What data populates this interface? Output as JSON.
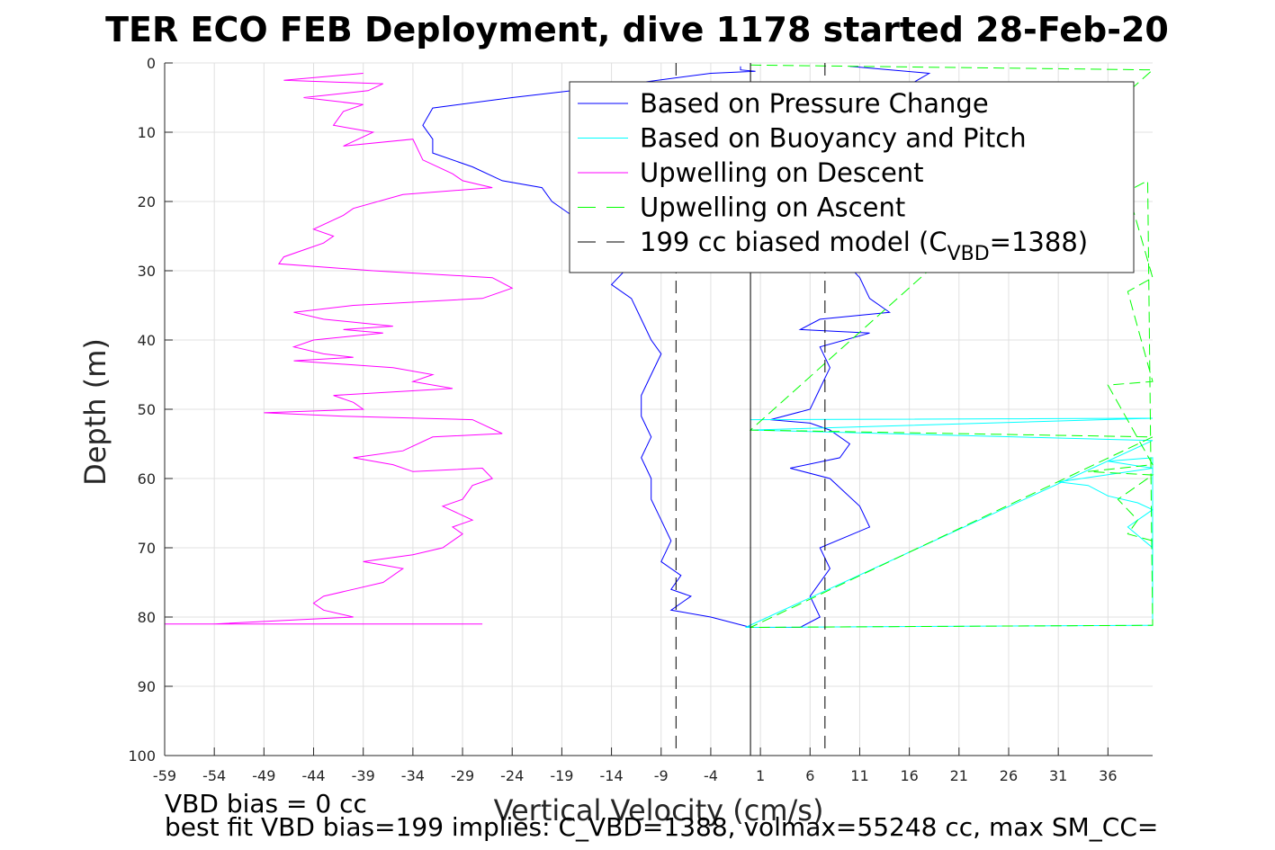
{
  "chart_data": {
    "type": "line",
    "title": "TER ECO FEB Deployment, dive 1178 started 28-Feb-20",
    "xlabel": "Vertical Velocity (cm/s)",
    "ylabel": "Depth (m)",
    "xlim": [
      -59,
      40.5
    ],
    "ylim": [
      0,
      100
    ],
    "y_reversed": true,
    "grid": true,
    "legend_position": "top-right",
    "xticks": [
      "-59",
      "-54",
      "-49",
      "-44",
      "-39",
      "-34",
      "-29",
      "-24",
      "-19",
      "-14",
      "-9",
      "-4",
      "1",
      "6",
      "11",
      "16",
      "21",
      "26",
      "31",
      "36"
    ],
    "yticks": [
      "0",
      "10",
      "20",
      "30",
      "40",
      "50",
      "60",
      "70",
      "80",
      "90",
      "100"
    ],
    "legend": [
      {
        "label": "Based on Pressure Change",
        "color": "#0000ff",
        "dash": "solid"
      },
      {
        "label": "Based on Buoyancy and Pitch",
        "color": "#00ffff",
        "dash": "solid"
      },
      {
        "label": "Upwelling on Descent",
        "color": "#ff00ff",
        "dash": "solid"
      },
      {
        "label": "Upwelling on Ascent",
        "color": "#00ff00",
        "dash": "dashed"
      },
      {
        "label_main": "199 cc biased model (C",
        "label_sub": "VBD",
        "label_end": "=1388)",
        "color": "#000000",
        "dash": "dashed"
      }
    ],
    "series": [
      {
        "name": "Upwelling on Descent",
        "color": "#ff00ff",
        "points": [
          [
            -39,
            1.5
          ],
          [
            -47,
            2.5
          ],
          [
            -37,
            3
          ],
          [
            -38.5,
            4
          ],
          [
            -45,
            5
          ],
          [
            -39,
            6
          ],
          [
            -41,
            7
          ],
          [
            -42,
            9
          ],
          [
            -38,
            10
          ],
          [
            -41,
            12
          ],
          [
            -34,
            11
          ],
          [
            -33,
            14
          ],
          [
            -30,
            16
          ],
          [
            -29,
            17
          ],
          [
            -26,
            18
          ],
          [
            -35,
            19
          ],
          [
            -40,
            21
          ],
          [
            -41,
            22
          ],
          [
            -44,
            24
          ],
          [
            -42,
            25
          ],
          [
            -43,
            26
          ],
          [
            -45,
            27
          ],
          [
            -47,
            28
          ],
          [
            -47.5,
            29
          ],
          [
            -38,
            30
          ],
          [
            -26,
            31
          ],
          [
            -24,
            32.5
          ],
          [
            -27,
            34
          ],
          [
            -40,
            35
          ],
          [
            -46,
            36
          ],
          [
            -43,
            37
          ],
          [
            -36,
            38
          ],
          [
            -41,
            38.5
          ],
          [
            -37,
            39
          ],
          [
            -44,
            40
          ],
          [
            -46,
            41
          ],
          [
            -43,
            42
          ],
          [
            -40,
            42.5
          ],
          [
            -46,
            43
          ],
          [
            -36,
            44
          ],
          [
            -32,
            45
          ],
          [
            -34,
            46
          ],
          [
            -30,
            47
          ],
          [
            -42,
            48
          ],
          [
            -40,
            49
          ],
          [
            -39,
            50
          ],
          [
            -49,
            50.5
          ],
          [
            -41,
            51
          ],
          [
            -28,
            51.5
          ],
          [
            -25,
            53.5
          ],
          [
            -32,
            54
          ],
          [
            -35,
            56
          ],
          [
            -40,
            57
          ],
          [
            -36,
            58
          ],
          [
            -34,
            59
          ],
          [
            -27,
            58.5
          ],
          [
            -26,
            60
          ],
          [
            -28,
            61
          ],
          [
            -29,
            63
          ],
          [
            -31,
            64
          ],
          [
            -28,
            66
          ],
          [
            -30,
            67
          ],
          [
            -29,
            68
          ],
          [
            -31,
            70
          ],
          [
            -34,
            71
          ],
          [
            -39,
            72
          ],
          [
            -35,
            73
          ],
          [
            -37,
            75
          ],
          [
            -40,
            76
          ],
          [
            -43,
            77
          ],
          [
            -44,
            78
          ],
          [
            -43,
            79
          ],
          [
            -40,
            80
          ],
          [
            -54,
            81
          ],
          [
            -59,
            81
          ],
          [
            -27,
            81
          ]
        ]
      },
      {
        "name": "Based on Pressure Change",
        "color": "#0000ff",
        "points": [
          [
            -1,
            0.5
          ],
          [
            -1,
            1
          ],
          [
            0.5,
            1.2
          ],
          [
            -4,
            1.5
          ],
          [
            -12,
            3
          ],
          [
            -24,
            5
          ],
          [
            -32,
            6.5
          ],
          [
            -33,
            9
          ],
          [
            -32,
            11
          ],
          [
            -32,
            13
          ],
          [
            -28,
            15
          ],
          [
            -25,
            17
          ],
          [
            -21,
            18
          ],
          [
            -20,
            20
          ],
          [
            -18,
            22
          ],
          [
            -17,
            25
          ],
          [
            -14,
            27
          ],
          [
            -12,
            29
          ],
          [
            -14,
            32
          ],
          [
            -12,
            34
          ],
          [
            -11,
            37
          ],
          [
            -10,
            40
          ],
          [
            -9,
            42
          ],
          [
            -10,
            45
          ],
          [
            -11,
            48
          ],
          [
            -11,
            51
          ],
          [
            -10,
            54
          ],
          [
            -11,
            57
          ],
          [
            -10,
            60
          ],
          [
            -10,
            63
          ],
          [
            -9,
            66
          ],
          [
            -8,
            69
          ],
          [
            -9,
            72
          ],
          [
            -7,
            74
          ],
          [
            -8,
            76
          ],
          [
            -6,
            77
          ],
          [
            -8,
            79
          ],
          [
            -4,
            80
          ],
          [
            0,
            81.5
          ],
          [
            5,
            81.5
          ],
          [
            7,
            80
          ],
          [
            6,
            77
          ],
          [
            8,
            73
          ],
          [
            7,
            70
          ],
          [
            12,
            67
          ],
          [
            11,
            64
          ],
          [
            8,
            60
          ],
          [
            4,
            58.5
          ],
          [
            9,
            57
          ],
          [
            10,
            55
          ],
          [
            8,
            53
          ],
          [
            6,
            52
          ],
          [
            2,
            51.5
          ],
          [
            6,
            50
          ],
          [
            7,
            47
          ],
          [
            8,
            44
          ],
          [
            7,
            41
          ],
          [
            12,
            39
          ],
          [
            5,
            38.5
          ],
          [
            7,
            37
          ],
          [
            14,
            36
          ],
          [
            12,
            34
          ],
          [
            11,
            31
          ],
          [
            9,
            28
          ],
          [
            8,
            25
          ],
          [
            7,
            22
          ],
          [
            6,
            19
          ],
          [
            7,
            16
          ],
          [
            9,
            12
          ],
          [
            12,
            8
          ],
          [
            15,
            4
          ],
          [
            18,
            1.5
          ],
          [
            10,
            0.5
          ]
        ]
      },
      {
        "name": "Based on Buoyancy and Pitch",
        "color": "#00ffff",
        "points": [
          [
            0,
            51.5
          ],
          [
            40.5,
            51.3
          ],
          [
            0,
            53
          ],
          [
            40.5,
            54.5
          ],
          [
            -0.5,
            81.5
          ],
          [
            40.5,
            81.2
          ],
          [
            40.5,
            57
          ],
          [
            36,
            57.5
          ],
          [
            40.5,
            58.5
          ],
          [
            31,
            60.5
          ],
          [
            34,
            61
          ],
          [
            36,
            62.5
          ],
          [
            39,
            63.5
          ],
          [
            40.5,
            64.5
          ],
          [
            38,
            67
          ],
          [
            40.5,
            70
          ]
        ]
      },
      {
        "name": "Upwelling on Ascent",
        "color": "#00ff00",
        "points": [
          [
            0,
            0.3
          ],
          [
            40.5,
            1
          ],
          [
            0,
            53
          ],
          [
            40.5,
            54
          ],
          [
            0,
            81.5
          ],
          [
            40.5,
            81.2
          ],
          [
            40,
            17
          ],
          [
            38,
            18.5
          ],
          [
            40.5,
            31
          ],
          [
            38,
            33
          ],
          [
            40.5,
            46
          ],
          [
            36,
            46.5
          ],
          [
            40.5,
            58
          ],
          [
            34,
            59
          ],
          [
            40.5,
            59.5
          ],
          [
            37,
            63
          ],
          [
            39,
            66
          ],
          [
            38,
            68
          ],
          [
            40.5,
            69
          ]
        ]
      },
      {
        "name": "199 cc biased model (CVBD=1388)",
        "color": "#000000",
        "vertical_lines_x": [
          -7.5,
          7.5
        ]
      },
      {
        "name": "zero",
        "color": "#000000",
        "vertical_lines_x": [
          0
        ]
      }
    ]
  },
  "notes": {
    "vbd_bias": "VBD bias = 0 cc",
    "best_fit": "best fit VBD bias=199 implies: C_VBD=1388, volmax=55248 cc, max SM_CC="
  }
}
